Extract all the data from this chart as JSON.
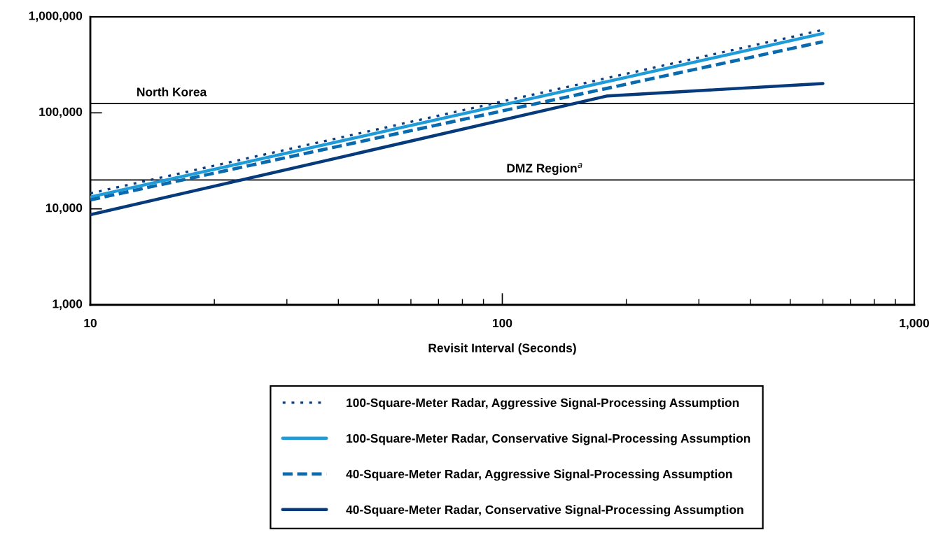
{
  "chart_data": {
    "type": "line",
    "xlabel": "Revisit Interval (Seconds)",
    "log": "xy",
    "xlim": [
      10,
      1000
    ],
    "ylim": [
      1000,
      1000000
    ],
    "xticks": [
      10,
      100,
      {
        "value": 1000,
        "label": "1,000"
      }
    ],
    "yticks": [
      {
        "value": 1000,
        "label": "1,000"
      },
      {
        "value": 10000,
        "label": "10,000"
      },
      {
        "value": 100000,
        "label": "100,000"
      },
      {
        "value": 1000000,
        "label": "1,000,000"
      }
    ],
    "legend": "bottom",
    "ref_lines": [
      {
        "axis": "y",
        "value": 125000,
        "label": "North Korea",
        "color": "#000000"
      },
      {
        "axis": "y",
        "value": 20000,
        "label": "DMZ Region$^{a}$",
        "color": "#000000"
      }
    ],
    "series": [
      {
        "name": "100-Square-Meter Radar, Aggressive Signal-Processing Assumption",
        "color": "#0b3c82",
        "line_style": "dotted",
        "x": [
          10,
          600
        ],
        "values": [
          14500,
          730000
        ]
      },
      {
        "name": "100-Square-Meter Radar, Conservative Signal-Processing Assumption",
        "color": "#1f9bd7",
        "line_style": "solid",
        "x": [
          10,
          600
        ],
        "values": [
          13300,
          670000
        ]
      },
      {
        "name": "40-Square-Meter Radar, Aggressive Signal-Processing Assumption",
        "color": "#0a6aae",
        "line_style": "dashed",
        "x": [
          10,
          600
        ],
        "values": [
          12400,
          550000
        ]
      },
      {
        "name": "40-Square-Meter Radar, Conservative Signal-Processing Assumption",
        "color": "#063a7a",
        "line_style": "solid",
        "x": [
          10,
          180,
          600
        ],
        "values": [
          8700,
          150000,
          202000
        ]
      }
    ]
  }
}
